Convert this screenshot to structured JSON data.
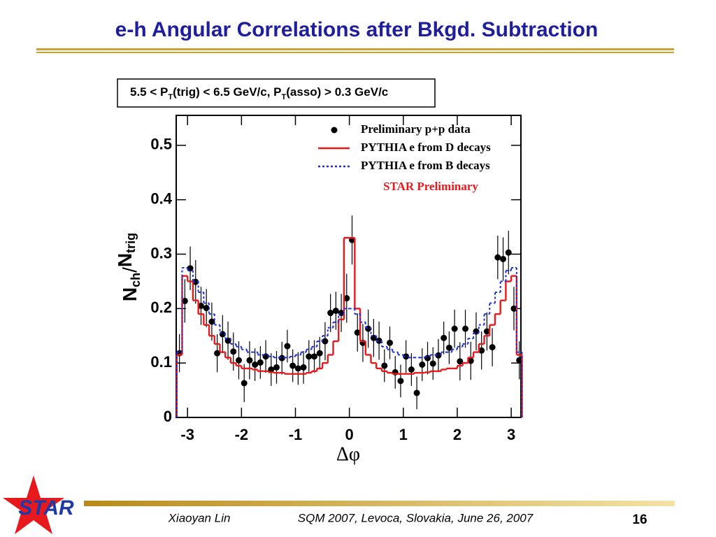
{
  "slide": {
    "title": "e-h Angular Correlations after Bkgd. Subtraction",
    "logo": "STAR",
    "footer": {
      "author": "Xiaoyan Lin",
      "event": "SQM 2007, Levoca, Slovakia, June 26, 2007",
      "page": "16"
    }
  },
  "chart_data": {
    "type": "scatter",
    "subtitle": [
      "5.5 < P",
      "T",
      "(trig) < 6.5 GeV/c, P",
      "T",
      "(asso) > 0.3 GeV/c"
    ],
    "y_label": [
      "N",
      "ch",
      "/",
      "N",
      "trig"
    ],
    "x_label": "Δφ",
    "annotation": "STAR Preliminary",
    "xlim": [
      -3.21,
      3.18
    ],
    "ylim": [
      0,
      0.555
    ],
    "xticks": [
      -3,
      -2,
      -1,
      0,
      1,
      2,
      3
    ],
    "yticks": [
      0,
      0.1,
      0.2,
      0.3,
      0.4,
      0.5
    ],
    "x": [
      -3.15,
      -3.05,
      -2.95,
      -2.85,
      -2.75,
      -2.65,
      -2.55,
      -2.45,
      -2.35,
      -2.25,
      -2.15,
      -2.05,
      -1.95,
      -1.85,
      -1.75,
      -1.65,
      -1.55,
      -1.45,
      -1.35,
      -1.25,
      -1.15,
      -1.05,
      -0.95,
      -0.85,
      -0.75,
      -0.65,
      -0.55,
      -0.45,
      -0.35,
      -0.25,
      -0.15,
      -0.05,
      0.05,
      0.15,
      0.25,
      0.35,
      0.45,
      0.55,
      0.65,
      0.75,
      0.85,
      0.95,
      1.05,
      1.15,
      1.25,
      1.35,
      1.45,
      1.55,
      1.65,
      1.75,
      1.85,
      1.95,
      2.05,
      2.15,
      2.25,
      2.35,
      2.45,
      2.55,
      2.65,
      2.75,
      2.85,
      2.95,
      3.05,
      3.15
    ],
    "series": [
      {
        "name": "Preliminary p+p data",
        "color": "#000000",
        "style": "points",
        "values": [
          0.118,
          0.214,
          0.274,
          0.249,
          0.205,
          0.201,
          0.176,
          0.118,
          0.153,
          0.141,
          0.121,
          0.105,
          0.063,
          0.105,
          0.097,
          0.101,
          0.112,
          0.088,
          0.092,
          0.109,
          0.131,
          0.095,
          0.09,
          0.092,
          0.112,
          0.112,
          0.118,
          0.14,
          0.192,
          0.196,
          0.192,
          0.219,
          0.326,
          0.156,
          0.137,
          0.163,
          0.146,
          0.141,
          0.095,
          0.137,
          0.083,
          0.067,
          0.112,
          0.088,
          0.045,
          0.097,
          0.109,
          0.099,
          0.114,
          0.146,
          0.128,
          0.163,
          0.103,
          0.163,
          0.104,
          0.158,
          0.123,
          0.158,
          0.129,
          0.294,
          0.291,
          0.303,
          0.2,
          0.105
        ],
        "errors": [
          0.035,
          0.04,
          0.04,
          0.04,
          0.035,
          0.035,
          0.035,
          0.035,
          0.035,
          0.035,
          0.035,
          0.035,
          0.035,
          0.035,
          0.03,
          0.03,
          0.03,
          0.03,
          0.03,
          0.03,
          0.03,
          0.03,
          0.03,
          0.03,
          0.03,
          0.03,
          0.03,
          0.035,
          0.035,
          0.035,
          0.035,
          0.045,
          0.045,
          0.035,
          0.035,
          0.035,
          0.035,
          0.035,
          0.03,
          0.03,
          0.03,
          0.03,
          0.03,
          0.03,
          0.03,
          0.03,
          0.03,
          0.03,
          0.03,
          0.03,
          0.03,
          0.035,
          0.035,
          0.035,
          0.035,
          0.035,
          0.035,
          0.035,
          0.035,
          0.04,
          0.04,
          0.04,
          0.04,
          0.035
        ]
      },
      {
        "name": "PYTHIA e from D decays",
        "color": "#e8191c",
        "style": "solid",
        "values": [
          0.115,
          0.26,
          0.25,
          0.215,
          0.19,
          0.17,
          0.15,
          0.135,
          0.12,
          0.11,
          0.1,
          0.095,
          0.09,
          0.09,
          0.088,
          0.085,
          0.085,
          0.083,
          0.082,
          0.082,
          0.08,
          0.08,
          0.08,
          0.08,
          0.082,
          0.085,
          0.09,
          0.1,
          0.115,
          0.14,
          0.18,
          0.33,
          0.33,
          0.2,
          0.14,
          0.115,
          0.1,
          0.09,
          0.085,
          0.082,
          0.08,
          0.08,
          0.08,
          0.08,
          0.082,
          0.082,
          0.083,
          0.085,
          0.085,
          0.088,
          0.09,
          0.09,
          0.095,
          0.1,
          0.11,
          0.12,
          0.135,
          0.15,
          0.17,
          0.19,
          0.215,
          0.25,
          0.26,
          0.115
        ]
      },
      {
        "name": "PYTHIA e from B decays",
        "color": "#1a2fd8",
        "style": "dashed",
        "values": [
          0.12,
          0.275,
          0.27,
          0.25,
          0.23,
          0.21,
          0.19,
          0.17,
          0.155,
          0.145,
          0.135,
          0.13,
          0.125,
          0.12,
          0.12,
          0.115,
          0.115,
          0.112,
          0.11,
          0.11,
          0.11,
          0.112,
          0.115,
          0.12,
          0.125,
          0.13,
          0.14,
          0.15,
          0.165,
          0.175,
          0.19,
          0.2,
          0.2,
          0.19,
          0.175,
          0.165,
          0.15,
          0.14,
          0.13,
          0.125,
          0.12,
          0.115,
          0.112,
          0.11,
          0.11,
          0.11,
          0.112,
          0.115,
          0.115,
          0.12,
          0.12,
          0.125,
          0.13,
          0.135,
          0.145,
          0.155,
          0.17,
          0.19,
          0.21,
          0.23,
          0.25,
          0.27,
          0.275,
          0.12
        ]
      }
    ]
  }
}
